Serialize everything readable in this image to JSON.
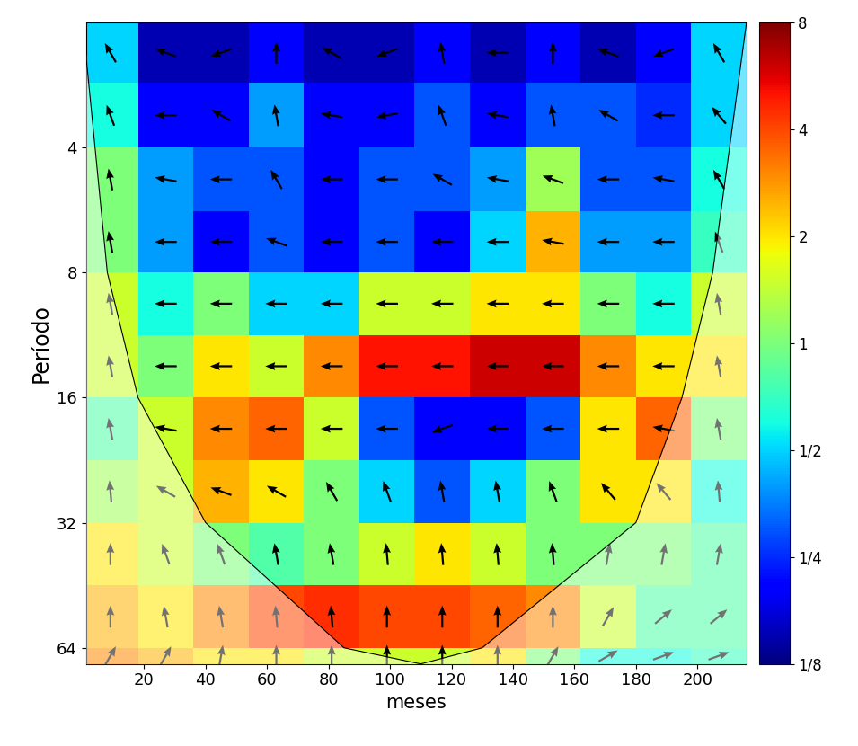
{
  "chart_data": {
    "type": "heatmap",
    "x_label": "meses",
    "y_label": "Período",
    "xlim": [
      1,
      216
    ],
    "xticks": [
      20,
      40,
      60,
      80,
      100,
      120,
      140,
      160,
      180,
      200
    ],
    "ylim": [
      2,
      70
    ],
    "yticks": [
      4,
      8,
      16,
      32,
      64
    ],
    "log": "y",
    "x_edges": [
      0,
      18,
      36,
      54,
      72,
      90,
      108,
      126,
      144,
      162,
      180,
      198,
      216
    ],
    "period_edges": [
      2,
      2.8,
      4,
      5.7,
      8,
      11.3,
      16,
      22.6,
      32,
      45.3,
      64,
      70
    ],
    "cells": [
      [
        0.5,
        0.15,
        0.15,
        0.2,
        0.15,
        0.15,
        0.2,
        0.15,
        0.2,
        0.15,
        0.2,
        0.5
      ],
      [
        0.6,
        0.2,
        0.2,
        0.4,
        0.2,
        0.2,
        0.3,
        0.2,
        0.3,
        0.3,
        0.25,
        0.5
      ],
      [
        1,
        0.4,
        0.3,
        0.3,
        0.2,
        0.3,
        0.3,
        0.4,
        1.2,
        0.3,
        0.3,
        0.6
      ],
      [
        1,
        0.4,
        0.2,
        0.3,
        0.2,
        0.3,
        0.2,
        0.5,
        2.5,
        0.4,
        0.4,
        0.7
      ],
      [
        1.5,
        0.6,
        1,
        0.5,
        0.5,
        1.5,
        1.5,
        2,
        2,
        1,
        0.6,
        1.5
      ],
      [
        1.5,
        1,
        2,
        1.5,
        3,
        5,
        5,
        6,
        6,
        3,
        2,
        2
      ],
      [
        0.8,
        1.5,
        3,
        3.5,
        1.5,
        0.3,
        0.2,
        0.2,
        0.3,
        2,
        3.5,
        1
      ],
      [
        1.2,
        1.5,
        2.5,
        2,
        1,
        0.5,
        0.3,
        0.5,
        1,
        2,
        2,
        0.6
      ],
      [
        2,
        1.5,
        1,
        0.8,
        1,
        1.5,
        2,
        1.5,
        1,
        1,
        1,
        0.8
      ],
      [
        2.5,
        2,
        3,
        4,
        4.5,
        4,
        4,
        3.5,
        3,
        1.5,
        0.8,
        0.8
      ],
      [
        3,
        2.5,
        2,
        2,
        1.5,
        1.5,
        1.5,
        2,
        1,
        0.6,
        0.6,
        0.7
      ]
    ],
    "phase_degrees": [
      [
        120,
        160,
        200,
        90,
        150,
        200,
        100,
        180,
        90,
        160,
        200,
        120
      ],
      [
        110,
        180,
        150,
        100,
        170,
        190,
        110,
        170,
        100,
        150,
        180,
        130
      ],
      [
        100,
        170,
        180,
        120,
        180,
        180,
        150,
        170,
        160,
        180,
        170,
        120
      ],
      [
        100,
        180,
        180,
        160,
        180,
        180,
        180,
        180,
        170,
        180,
        180,
        110
      ],
      [
        100,
        180,
        180,
        180,
        180,
        180,
        180,
        180,
        180,
        180,
        180,
        100
      ],
      [
        100,
        180,
        180,
        180,
        180,
        180,
        180,
        180,
        180,
        180,
        180,
        100
      ],
      [
        100,
        170,
        180,
        180,
        180,
        180,
        200,
        180,
        180,
        180,
        170,
        100
      ],
      [
        95,
        150,
        160,
        150,
        120,
        110,
        100,
        100,
        110,
        130,
        130,
        95
      ],
      [
        90,
        110,
        110,
        100,
        100,
        95,
        95,
        95,
        95,
        80,
        80,
        80
      ],
      [
        90,
        100,
        100,
        95,
        95,
        90,
        90,
        90,
        90,
        60,
        40,
        40
      ],
      [
        60,
        60,
        80,
        90,
        90,
        90,
        90,
        90,
        60,
        30,
        20,
        20
      ]
    ],
    "coi": {
      "x": [
        0,
        8,
        18,
        40,
        85,
        110,
        130,
        180,
        195,
        205,
        216
      ],
      "period": [
        2,
        8,
        16,
        32,
        64,
        70,
        64,
        32,
        16,
        8,
        2
      ]
    },
    "colorbar_range": [
      0.125,
      8
    ],
    "colorbar_ticks": [
      {
        "value": 0.125,
        "label": "1/8"
      },
      {
        "value": 0.25,
        "label": "1/4"
      },
      {
        "value": 0.5,
        "label": "1/2"
      },
      1,
      2,
      4,
      8
    ]
  }
}
